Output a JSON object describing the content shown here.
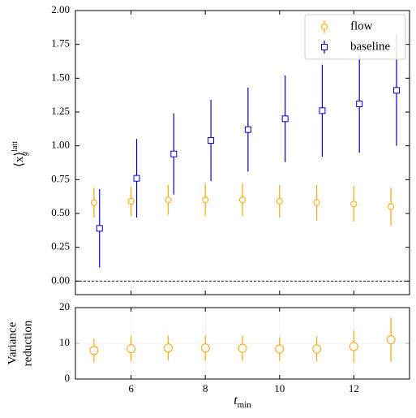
{
  "chart_data": [
    {
      "type": "errorbar",
      "ylabel": {
        "base": "⟨x⟩",
        "sup": "latt",
        "sub": "g"
      },
      "xlim": [
        4.5,
        13.5
      ],
      "xticks": [
        6,
        8,
        10,
        12
      ],
      "ylim": [
        -0.1,
        2.0
      ],
      "yticks": [
        {
          "value": 0,
          "label": "0.00"
        },
        {
          "value": 0.25,
          "label": "0.25"
        },
        {
          "value": 0.5,
          "label": "0.50"
        },
        {
          "value": 0.75,
          "label": "0.75"
        },
        {
          "value": 1,
          "label": "1.00"
        },
        {
          "value": 1.25,
          "label": "1.25"
        },
        {
          "value": 1.5,
          "label": "1.50"
        },
        {
          "value": 1.75,
          "label": "1.75"
        },
        {
          "value": 2,
          "label": "2.00"
        }
      ],
      "hline": 0,
      "legend": "upper right",
      "grid": false,
      "series": [
        {
          "name": "flow",
          "color": "#ffa500",
          "marker": "circle",
          "x": [
            5,
            6,
            7,
            8,
            9,
            10,
            11,
            12,
            13
          ],
          "values": [
            0.58,
            0.59,
            0.6,
            0.6,
            0.6,
            0.59,
            0.58,
            0.57,
            0.55
          ],
          "errors": [
            0.11,
            0.11,
            0.11,
            0.12,
            0.12,
            0.12,
            0.13,
            0.13,
            0.14
          ]
        },
        {
          "name": "baseline",
          "color": "#0000cc",
          "marker": "square",
          "x": [
            5.15,
            6.15,
            7.15,
            8.15,
            9.15,
            10.15,
            11.15,
            12.15,
            13.15
          ],
          "values": [
            0.39,
            0.76,
            0.94,
            1.04,
            1.12,
            1.2,
            1.26,
            1.31,
            1.41
          ],
          "errors": [
            0.29,
            0.29,
            0.3,
            0.3,
            0.31,
            0.32,
            0.34,
            0.36,
            0.41
          ]
        }
      ]
    },
    {
      "type": "errorbar",
      "ylabel": {
        "lines": [
          "Variance",
          "reduction"
        ]
      },
      "xlabel": {
        "base": "t",
        "sub": "min"
      },
      "xlim": [
        4.5,
        13.5
      ],
      "xticks": [
        6,
        8,
        10,
        12
      ],
      "ylim": [
        0,
        20
      ],
      "yticks": [
        0,
        10,
        20
      ],
      "grid": true,
      "series": [
        {
          "color": "#ffa500",
          "marker": "circle",
          "x": [
            5,
            6,
            7,
            8,
            9,
            10,
            11,
            12,
            13
          ],
          "values": [
            8.0,
            8.5,
            8.7,
            8.7,
            8.6,
            8.4,
            8.4,
            9.1,
            11.0
          ],
          "errors": [
            3.3,
            3.5,
            3.5,
            3.5,
            3.5,
            3.3,
            3.5,
            4.5,
            6.2
          ]
        }
      ]
    }
  ]
}
